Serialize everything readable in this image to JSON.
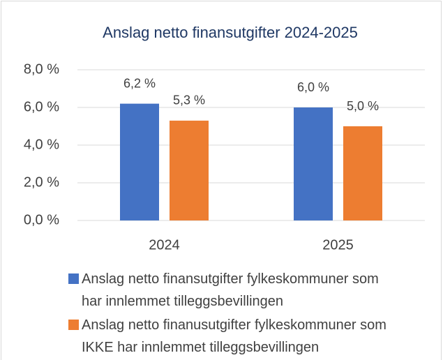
{
  "chart_data": {
    "type": "bar",
    "title": "Anslag netto finansutgifter 2024-2025",
    "categories": [
      "2024",
      "2025"
    ],
    "series": [
      {
        "name": "Anslag netto finansutgifter fylkeskommuner som har innlemmet tilleggsbevillingen",
        "color": "#4472c4",
        "values": [
          6.2,
          6.0
        ],
        "value_labels": [
          "6,2 %",
          "6,0 %"
        ]
      },
      {
        "name": "Anslag netto finanusutgifter fylkeskommuner som IKKE har innlemmet tilleggsbevillingen",
        "color": "#ed7d31",
        "values": [
          5.3,
          5.0
        ],
        "value_labels": [
          "5,3 %",
          "5,0 %"
        ]
      }
    ],
    "ylim": [
      0,
      8
    ],
    "yticks": [
      {
        "value": 0,
        "label": "0,0 %"
      },
      {
        "value": 2,
        "label": "2,0 %"
      },
      {
        "value": 4,
        "label": "4,0 %"
      },
      {
        "value": 6,
        "label": "6,0 %"
      },
      {
        "value": 8,
        "label": "8,0 %"
      }
    ],
    "grid": true,
    "legend": "bottom"
  }
}
